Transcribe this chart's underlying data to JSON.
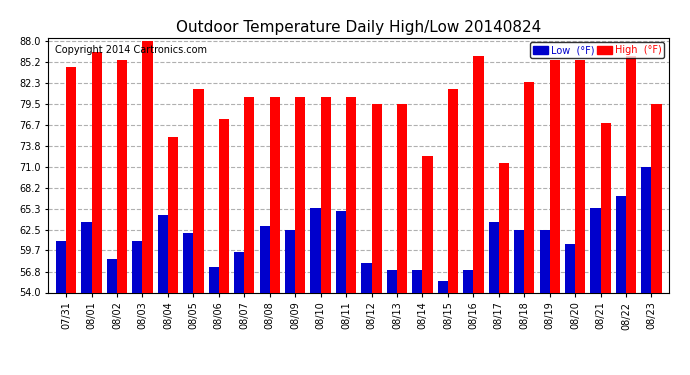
{
  "title": "Outdoor Temperature Daily High/Low 20140824",
  "copyright": "Copyright 2014 Cartronics.com",
  "dates": [
    "07/31",
    "08/01",
    "08/02",
    "08/03",
    "08/04",
    "08/05",
    "08/06",
    "08/07",
    "08/08",
    "08/09",
    "08/10",
    "08/11",
    "08/12",
    "08/13",
    "08/14",
    "08/15",
    "08/16",
    "08/17",
    "08/18",
    "08/19",
    "08/20",
    "08/21",
    "08/22",
    "08/23"
  ],
  "highs": [
    84.5,
    86.5,
    85.5,
    88.0,
    75.0,
    81.5,
    77.5,
    80.5,
    80.5,
    80.5,
    80.5,
    80.5,
    79.5,
    79.5,
    72.5,
    81.5,
    86.0,
    71.5,
    82.5,
    85.5,
    85.5,
    77.0,
    86.0,
    79.5
  ],
  "lows": [
    61.0,
    63.5,
    58.5,
    61.0,
    64.5,
    62.0,
    57.5,
    59.5,
    63.0,
    62.5,
    65.5,
    65.0,
    58.0,
    57.0,
    57.0,
    55.5,
    57.0,
    63.5,
    62.5,
    62.5,
    60.5,
    65.5,
    67.0,
    71.0
  ],
  "high_color": "#ff0000",
  "low_color": "#0000cc",
  "bg_color": "#ffffff",
  "plot_bg_color": "#ffffff",
  "grid_color": "#b0b0b0",
  "title_fontsize": 11,
  "copyright_fontsize": 7,
  "tick_fontsize": 7,
  "ylim": [
    54.0,
    88.0
  ],
  "yticks": [
    54.0,
    56.8,
    59.7,
    62.5,
    65.3,
    68.2,
    71.0,
    73.8,
    76.7,
    79.5,
    82.3,
    85.2,
    88.0
  ],
  "legend_low_label": "Low  (°F)",
  "legend_high_label": "High  (°F)"
}
